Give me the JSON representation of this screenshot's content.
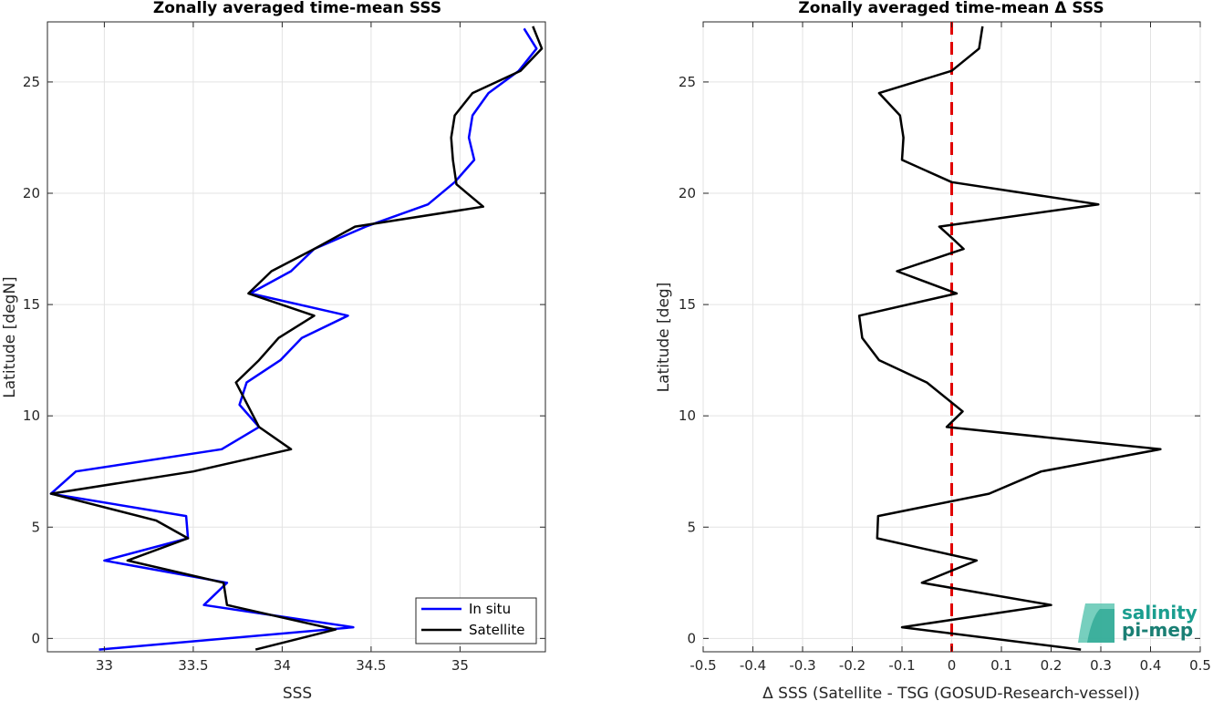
{
  "chart_data": [
    {
      "type": "line",
      "title": "Zonally averaged time-mean SSS",
      "xlabel": "SSS",
      "ylabel": "Latitude [degN]",
      "xlim": [
        32.68,
        35.48
      ],
      "ylim": [
        -0.6,
        27.7
      ],
      "xticks": [
        33,
        33.5,
        34,
        34.5,
        35
      ],
      "xtick_labels": [
        "33",
        "33.5",
        "34",
        "34.5",
        "35"
      ],
      "yticks": [
        0,
        5,
        10,
        15,
        20,
        25
      ],
      "ytick_labels": [
        "0",
        "5",
        "10",
        "15",
        "20",
        "25"
      ],
      "grid": true,
      "legend": "bottom-right",
      "series": [
        {
          "name": "In situ",
          "color": "#0000ff",
          "points": [
            [
              32.97,
              -0.5
            ],
            [
              34.4,
              0.5
            ],
            [
              33.56,
              1.5
            ],
            [
              33.69,
              2.5
            ],
            [
              33.0,
              3.5
            ],
            [
              33.47,
              4.5
            ],
            [
              33.46,
              5.5
            ],
            [
              32.7,
              6.5
            ],
            [
              32.84,
              7.5
            ],
            [
              33.66,
              8.5
            ],
            [
              33.87,
              9.5
            ],
            [
              33.76,
              10.5
            ],
            [
              33.8,
              11.5
            ],
            [
              33.99,
              12.5
            ],
            [
              34.11,
              13.5
            ],
            [
              34.37,
              14.5
            ],
            [
              33.82,
              15.5
            ],
            [
              34.05,
              16.5
            ],
            [
              34.18,
              17.5
            ],
            [
              34.47,
              18.5
            ],
            [
              34.82,
              19.5
            ],
            [
              34.97,
              20.5
            ],
            [
              35.08,
              21.5
            ],
            [
              35.05,
              22.5
            ],
            [
              35.07,
              23.5
            ],
            [
              35.16,
              24.5
            ],
            [
              35.33,
              25.5
            ],
            [
              35.43,
              26.5
            ],
            [
              35.36,
              27.4
            ]
          ]
        },
        {
          "name": "Satellite",
          "color": "#000000",
          "points": [
            [
              33.85,
              -0.5
            ],
            [
              34.3,
              0.4
            ],
            [
              33.69,
              1.5
            ],
            [
              33.67,
              2.5
            ],
            [
              33.13,
              3.5
            ],
            [
              33.47,
              4.5
            ],
            [
              33.29,
              5.3
            ],
            [
              32.7,
              6.5
            ],
            [
              33.5,
              7.5
            ],
            [
              34.05,
              8.5
            ],
            [
              33.87,
              9.5
            ],
            [
              33.74,
              11.5
            ],
            [
              33.87,
              12.5
            ],
            [
              33.98,
              13.5
            ],
            [
              34.18,
              14.5
            ],
            [
              33.81,
              15.5
            ],
            [
              33.94,
              16.5
            ],
            [
              34.18,
              17.5
            ],
            [
              34.41,
              18.5
            ],
            [
              35.13,
              19.4
            ],
            [
              34.98,
              20.4
            ],
            [
              34.96,
              21.5
            ],
            [
              34.95,
              22.5
            ],
            [
              34.97,
              23.5
            ],
            [
              35.07,
              24.5
            ],
            [
              35.34,
              25.5
            ],
            [
              35.46,
              26.5
            ],
            [
              35.41,
              27.5
            ]
          ]
        }
      ]
    },
    {
      "type": "line",
      "title": "Zonally averaged time-mean Δ SSS",
      "xlabel": "Δ SSS (Satellite - TSG (GOSUD-Research-vessel))",
      "ylabel": "Latitude [deg]",
      "xlim": [
        -0.5,
        0.5
      ],
      "ylim": [
        -0.6,
        27.7
      ],
      "xticks": [
        -0.5,
        -0.4,
        -0.3,
        -0.2,
        -0.1,
        0,
        0.1,
        0.2,
        0.3,
        0.4,
        0.5
      ],
      "xtick_labels": [
        "-0.5",
        "-0.4",
        "-0.3",
        "-0.2",
        "-0.1",
        "0",
        "0.1",
        "0.2",
        "0.3",
        "0.4",
        "0.5"
      ],
      "yticks": [
        0,
        5,
        10,
        15,
        20,
        25
      ],
      "ytick_labels": [
        "0",
        "5",
        "10",
        "15",
        "20",
        "25"
      ],
      "grid": true,
      "reference_line": {
        "x": 0,
        "color": "#e00000",
        "style": "dashed"
      },
      "series": [
        {
          "color": "#000000",
          "points": [
            [
              0.26,
              -0.5
            ],
            [
              -0.1,
              0.5
            ],
            [
              0.2,
              1.5
            ],
            [
              -0.06,
              2.5
            ],
            [
              0.05,
              3.5
            ],
            [
              -0.15,
              4.5
            ],
            [
              -0.148,
              5.5
            ],
            [
              0.075,
              6.5
            ],
            [
              0.18,
              7.5
            ],
            [
              0.42,
              8.5
            ],
            [
              -0.01,
              9.5
            ],
            [
              0.022,
              10.2
            ],
            [
              -0.05,
              11.5
            ],
            [
              -0.146,
              12.5
            ],
            [
              -0.18,
              13.5
            ],
            [
              -0.186,
              14.5
            ],
            [
              0.01,
              15.5
            ],
            [
              -0.11,
              16.5
            ],
            [
              0.024,
              17.5
            ],
            [
              0.0,
              18.0
            ],
            [
              -0.025,
              18.5
            ],
            [
              0.295,
              19.5
            ],
            [
              0.0,
              20.5
            ],
            [
              -0.1,
              21.5
            ],
            [
              -0.097,
              22.5
            ],
            [
              -0.104,
              23.5
            ],
            [
              -0.146,
              24.5
            ],
            [
              0.0,
              25.5
            ],
            [
              0.055,
              26.5
            ],
            [
              0.062,
              27.5
            ]
          ]
        }
      ]
    }
  ],
  "logo": {
    "line1": "salinity",
    "line2": "pi-mep"
  }
}
